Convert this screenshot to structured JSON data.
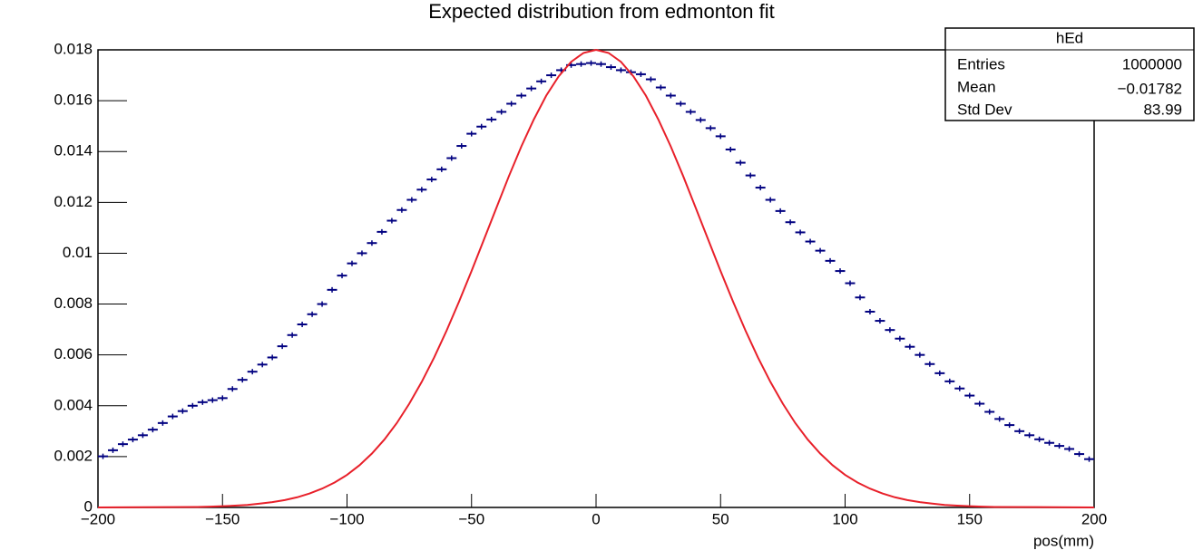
{
  "chart_data": {
    "type": "histogram",
    "title": "Expected distribution from edmonton fit",
    "xlabel": "pos(mm)",
    "bins": [
      -200,
      -196,
      -192,
      -188,
      -184,
      -180,
      -176,
      -172,
      -168,
      -164,
      -160,
      -156,
      -152,
      -148,
      -144,
      -140,
      -136,
      -132,
      -128,
      -124,
      -120,
      -116,
      -112,
      -108,
      -104,
      -100,
      -96,
      -92,
      -88,
      -84,
      -80,
      -76,
      -72,
      -68,
      -64,
      -60,
      -56,
      -52,
      -48,
      -44,
      -40,
      -36,
      -32,
      -28,
      -24,
      -20,
      -16,
      -12,
      -8,
      -4,
      0,
      4,
      8,
      12,
      16,
      20,
      24,
      28,
      32,
      36,
      40,
      44,
      48,
      52,
      56,
      60,
      64,
      68,
      72,
      76,
      80,
      84,
      88,
      92,
      96,
      100,
      104,
      108,
      112,
      116,
      120,
      124,
      128,
      132,
      136,
      140,
      144,
      148,
      152,
      156,
      160,
      164,
      168,
      172,
      176,
      180,
      184,
      188,
      192,
      196,
      200
    ],
    "values": [
      0.00201,
      0.00225,
      0.00249,
      0.00267,
      0.00284,
      0.00306,
      0.00332,
      0.00358,
      0.00379,
      0.004,
      0.00414,
      0.00422,
      0.0043,
      0.00466,
      0.00502,
      0.00534,
      0.00562,
      0.0059,
      0.00634,
      0.00678,
      0.0072,
      0.0076,
      0.008,
      0.00856,
      0.00912,
      0.0096,
      0.01,
      0.0104,
      0.01084,
      0.01128,
      0.0117,
      0.0121,
      0.0125,
      0.0129,
      0.0133,
      0.01374,
      0.01422,
      0.0147,
      0.01498,
      0.01526,
      0.01556,
      0.01588,
      0.0162,
      0.01648,
      0.01676,
      0.017,
      0.0172,
      0.0174,
      0.01744,
      0.01748,
      0.01744,
      0.01732,
      0.0172,
      0.01712,
      0.01704,
      0.01684,
      0.01652,
      0.0162,
      0.01588,
      0.01556,
      0.01524,
      0.01492,
      0.0146,
      0.01408,
      0.01356,
      0.01306,
      0.01258,
      0.0121,
      0.01166,
      0.01122,
      0.01082,
      0.01046,
      0.0101,
      0.0097,
      0.0093,
      0.00882,
      0.00826,
      0.0077,
      0.00734,
      0.00698,
      0.00664,
      0.00632,
      0.006,
      0.00564,
      0.00528,
      0.00496,
      0.00468,
      0.0044,
      0.00408,
      0.00376,
      0.00348,
      0.00324,
      0.003,
      0.00284,
      0.00268,
      0.00254,
      0.00242,
      0.0023,
      0.0021,
      0.0019
    ],
    "color": "#000080",
    "fit": {
      "type": "line",
      "color": "#e8202a",
      "x": [
        -200,
        -160,
        -155,
        -150,
        -145,
        -140,
        -135,
        -130,
        -125,
        -120,
        -115,
        -110,
        -105,
        -100,
        -95,
        -90,
        -85,
        -80,
        -75,
        -70,
        -65,
        -60,
        -55,
        -50,
        -45,
        -40,
        -35,
        -30,
        -25,
        -20,
        -15,
        -10,
        -5,
        0,
        5,
        10,
        15,
        20,
        25,
        30,
        35,
        40,
        45,
        50,
        55,
        60,
        65,
        70,
        75,
        80,
        85,
        90,
        95,
        100,
        105,
        110,
        115,
        120,
        125,
        130,
        135,
        140,
        145,
        150,
        155,
        160,
        200
      ],
      "values": [
        0,
        2e-05,
        3e-05,
        5e-05,
        7e-05,
        0.0001,
        0.00015,
        0.00021,
        0.00029,
        0.0004,
        0.00055,
        0.00074,
        0.00098,
        0.00128,
        0.00166,
        0.00212,
        0.00267,
        0.00332,
        0.00408,
        0.00494,
        0.0059,
        0.00696,
        0.0081,
        0.0093,
        0.01054,
        0.01179,
        0.01303,
        0.0142,
        0.01526,
        0.0162,
        0.01696,
        0.01753,
        0.01788,
        0.018,
        0.01788,
        0.01753,
        0.01696,
        0.0162,
        0.01526,
        0.0142,
        0.01303,
        0.01179,
        0.01054,
        0.0093,
        0.0081,
        0.00696,
        0.0059,
        0.00494,
        0.00408,
        0.00332,
        0.00267,
        0.00212,
        0.00166,
        0.00128,
        0.00098,
        0.00074,
        0.00055,
        0.0004,
        0.00029,
        0.00021,
        0.00015,
        0.0001,
        7e-05,
        5e-05,
        3e-05,
        2e-05,
        0
      ]
    },
    "xlim": [
      -200,
      200
    ],
    "ylim": [
      0,
      0.018
    ],
    "xticks": [
      {
        "value": -200,
        "label": "−200"
      },
      {
        "value": -150,
        "label": "−150"
      },
      {
        "value": -100,
        "label": "−100"
      },
      {
        "value": -50,
        "label": "−50"
      },
      0,
      50,
      100,
      150,
      200
    ],
    "yticks": [
      0,
      0.002,
      0.004,
      0.006,
      0.008,
      0.01,
      0.012,
      0.014,
      0.016,
      0.018
    ],
    "stats": {
      "title": "hEd",
      "rows": [
        [
          "Entries",
          "1000000"
        ],
        [
          "Mean",
          "−0.01782"
        ],
        [
          "Std Dev",
          "83.99"
        ]
      ]
    }
  }
}
